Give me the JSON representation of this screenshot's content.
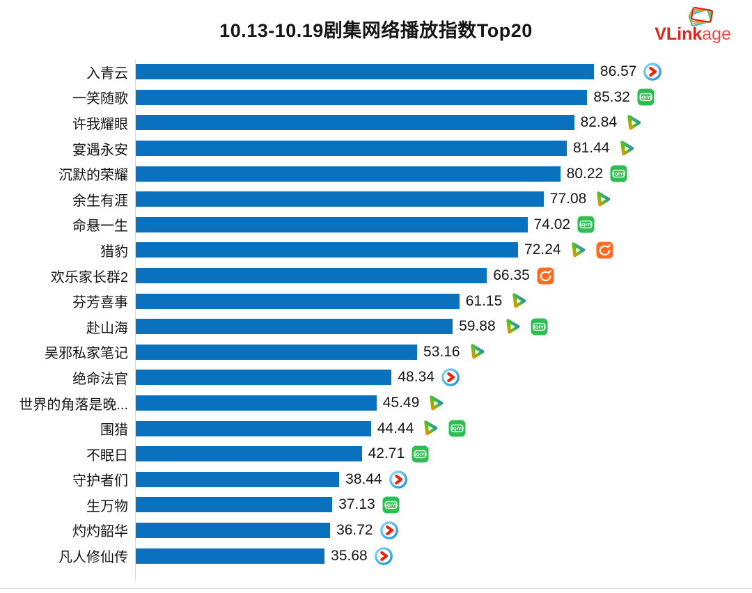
{
  "title": "10.13-10.19剧集网络播放指数Top20",
  "logo": {
    "text_bold": "VLink",
    "text_light": "age",
    "brand_color": "#E2231A"
  },
  "chart_data": {
    "type": "bar",
    "orientation": "horizontal",
    "title": "10.13-10.19剧集网络播放指数Top20",
    "xlabel": "",
    "ylabel": "",
    "xlim": [
      0,
      90
    ],
    "grid": false,
    "bar_color": "#0A71BE",
    "value_label_position": "outside-right",
    "categories": [
      "入青云",
      "一笑随歌",
      "许我耀眼",
      "宴遇永安",
      "沉默的荣耀",
      "余生有涯",
      "命悬一生",
      "猎豹",
      "欢乐家长群2",
      "芬芳喜事",
      "赴山海",
      "吴邪私家笔记",
      "绝命法官",
      "世界的角落是晚...",
      "围猎",
      "不眠日",
      "守护者们",
      "生万物",
      "灼灼韶华",
      "凡人修仙传"
    ],
    "values": [
      86.57,
      85.32,
      82.84,
      81.44,
      80.22,
      77.08,
      74.02,
      72.24,
      66.35,
      61.15,
      59.88,
      53.16,
      48.34,
      45.49,
      44.44,
      42.71,
      38.44,
      37.13,
      36.72,
      35.68
    ],
    "platforms": [
      [
        "youku"
      ],
      [
        "iqiyi"
      ],
      [
        "tencent"
      ],
      [
        "tencent"
      ],
      [
        "iqiyi"
      ],
      [
        "tencent"
      ],
      [
        "iqiyi"
      ],
      [
        "tencent",
        "mgtv"
      ],
      [
        "mgtv"
      ],
      [
        "tencent"
      ],
      [
        "tencent",
        "iqiyi"
      ],
      [
        "tencent"
      ],
      [
        "youku"
      ],
      [
        "tencent"
      ],
      [
        "tencent",
        "iqiyi"
      ],
      [
        "iqiyi"
      ],
      [
        "youku"
      ],
      [
        "iqiyi"
      ],
      [
        "youku"
      ],
      [
        "youku"
      ]
    ],
    "platform_colors": {
      "youku_ring_blue": "#1593D8",
      "youku_arrow_red": "#E8210B",
      "iqiyi_green": "#2EBD4F",
      "tencent_orange": "#FF8A00",
      "tencent_green": "#53C51F",
      "tencent_blue": "#1B7CE4",
      "mgtv_orange": "#FC6B21"
    }
  }
}
